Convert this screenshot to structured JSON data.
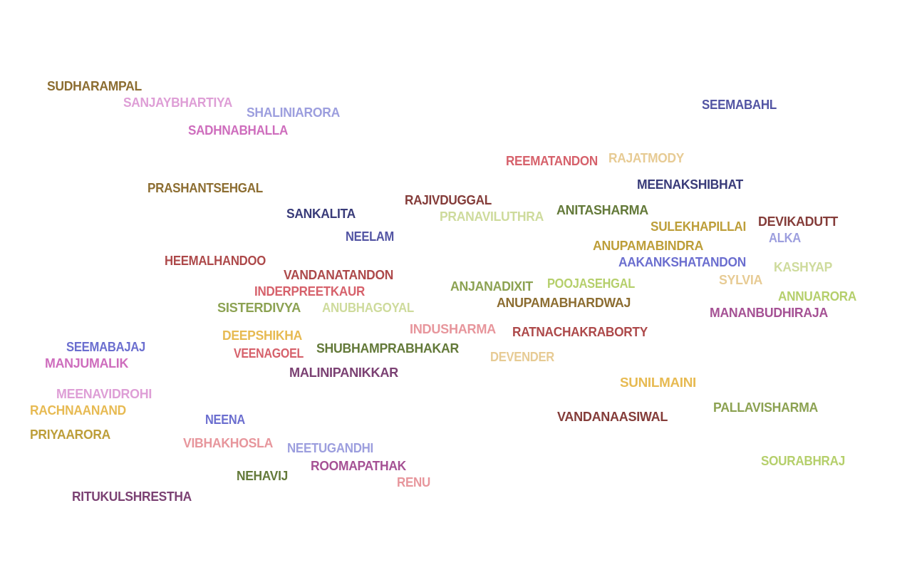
{
  "words": [
    {
      "text": "SUDHARAMPAL",
      "color": "#8c6d31"
    },
    {
      "text": "SANJAYBHARTIYA",
      "color": "#de9ed6"
    },
    {
      "text": "SHALINIARORA",
      "color": "#9c9ede"
    },
    {
      "text": "SADHNABHALLA",
      "color": "#ce6dbd"
    },
    {
      "text": "SEEMABAHL",
      "color": "#5254a3"
    },
    {
      "text": "REEMATANDON",
      "color": "#d6616b"
    },
    {
      "text": "RAJATMODY",
      "color": "#e7cb94"
    },
    {
      "text": "MEENAKSHIBHAT",
      "color": "#393b79"
    },
    {
      "text": "PRASHANTSEHGAL",
      "color": "#8c6d31"
    },
    {
      "text": "RAJIVDUGGAL",
      "color": "#843c39"
    },
    {
      "text": "SANKALITA",
      "color": "#393b79"
    },
    {
      "text": "PRANAVILUTHRA",
      "color": "#cedb9c"
    },
    {
      "text": "ANITASHARMA",
      "color": "#637939"
    },
    {
      "text": "DEVIKADUTT",
      "color": "#843c39"
    },
    {
      "text": "SULEKHAPILLAI",
      "color": "#bd9e39"
    },
    {
      "text": "NEELAM",
      "color": "#5254a3"
    },
    {
      "text": "ALKA",
      "color": "#9c9ede"
    },
    {
      "text": "ANUPAMABINDRA",
      "color": "#bd9e39"
    },
    {
      "text": "HEEMALHANDOO",
      "color": "#ad494a"
    },
    {
      "text": "AAKANKSHATANDON",
      "color": "#6b6ecf"
    },
    {
      "text": "KASHYAP",
      "color": "#cedb9c"
    },
    {
      "text": "VANDANATANDON",
      "color": "#ad494a"
    },
    {
      "text": "SYLVIA",
      "color": "#e7cb94"
    },
    {
      "text": "ANJANADIXIT",
      "color": "#8ca252"
    },
    {
      "text": "POOJASEHGAL",
      "color": "#b5cf6b"
    },
    {
      "text": "INDERPREETKAUR",
      "color": "#d6616b"
    },
    {
      "text": "ANNUARORA",
      "color": "#b5cf6b"
    },
    {
      "text": "ANUPAMABHARDWAJ",
      "color": "#8c6d31"
    },
    {
      "text": "SISTERDIVYA",
      "color": "#8ca252"
    },
    {
      "text": "ANUBHAGOYAL",
      "color": "#cedb9c"
    },
    {
      "text": "MANANBUDHIRAJA",
      "color": "#a55194"
    },
    {
      "text": "INDUSHARMA",
      "color": "#e7969c"
    },
    {
      "text": "RATNACHAKRABORTY",
      "color": "#ad494a"
    },
    {
      "text": "DEEPSHIKHA",
      "color": "#e7ba52"
    },
    {
      "text": "SEEMABAJAJ",
      "color": "#6b6ecf"
    },
    {
      "text": "SHUBHAMPRABHAKAR",
      "color": "#637939"
    },
    {
      "text": "VEENAGOEL",
      "color": "#d6616b"
    },
    {
      "text": "DEVENDER",
      "color": "#e7cb94"
    },
    {
      "text": "MANJUMALIK",
      "color": "#ce6dbd"
    },
    {
      "text": "MALINIPANIKKAR",
      "color": "#7b4173"
    },
    {
      "text": "SUNILMAINI",
      "color": "#e7ba52"
    },
    {
      "text": "MEENAVIDROHI",
      "color": "#de9ed6"
    },
    {
      "text": "PALLAVISHARMA",
      "color": "#8ca252"
    },
    {
      "text": "RACHNAANAND",
      "color": "#e7ba52"
    },
    {
      "text": "NEENA",
      "color": "#6b6ecf"
    },
    {
      "text": "VANDANAASIWAL",
      "color": "#843c39"
    },
    {
      "text": "PRIYAARORA",
      "color": "#bd9e39"
    },
    {
      "text": "VIBHAKHOSLA",
      "color": "#e7969c"
    },
    {
      "text": "NEETUGANDHI",
      "color": "#9c9ede"
    },
    {
      "text": "SOURABHRAJ",
      "color": "#b5cf6b"
    },
    {
      "text": "ROOMAPATHAK",
      "color": "#a55194"
    },
    {
      "text": "NEHAVIJ",
      "color": "#637939"
    },
    {
      "text": "RENU",
      "color": "#e7969c"
    },
    {
      "text": "RITUKULSHRESTHA",
      "color": "#7b4173"
    }
  ]
}
